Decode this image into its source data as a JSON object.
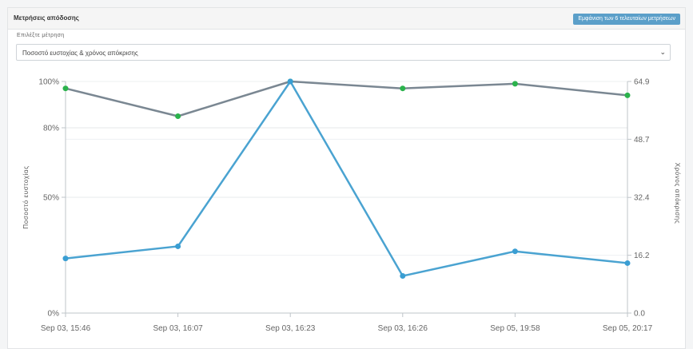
{
  "panel": {
    "title": "Μετρήσεις απόδοσης",
    "button_label": "Εμφάνιση των 6 τελευταίων μετρήσεων"
  },
  "metric_select": {
    "label": "Επιλέξτε μέτρηση",
    "value": "Ποσοστό ευστοχίας & χρόνος απόκρισης",
    "chevron_icon": "chevron-down-icon"
  },
  "chart_data": {
    "type": "line",
    "categories": [
      "Sep 03, 15:46",
      "Sep 03, 16:07",
      "Sep 03, 16:23",
      "Sep 03, 16:26",
      "Sep 05, 19:58",
      "Sep 05, 20:17"
    ],
    "y_left_label": "Ποσοστό ευστοχίας",
    "y_right_label": "Χρόνος απόκρισης",
    "y_left_ticks": [
      "100%",
      "80%",
      "50%",
      "0%"
    ],
    "y_right_ticks": [
      "64.9",
      "48.7",
      "32.4",
      "16.2",
      "0.0"
    ],
    "y_right_range": [
      0,
      64.9
    ],
    "series": [
      {
        "axis": "left",
        "color": "#7a8792",
        "marker_color": "#2bb24c",
        "display_fraction": [
          0.97,
          0.85,
          1.0,
          0.97,
          0.99,
          0.94
        ]
      },
      {
        "axis": "right",
        "color": "#4aa3d1",
        "marker_color": "#3a9ed3",
        "values": [
          15.3,
          18.7,
          64.9,
          10.4,
          17.3,
          14.0
        ]
      }
    ],
    "grid": "horizontal"
  }
}
